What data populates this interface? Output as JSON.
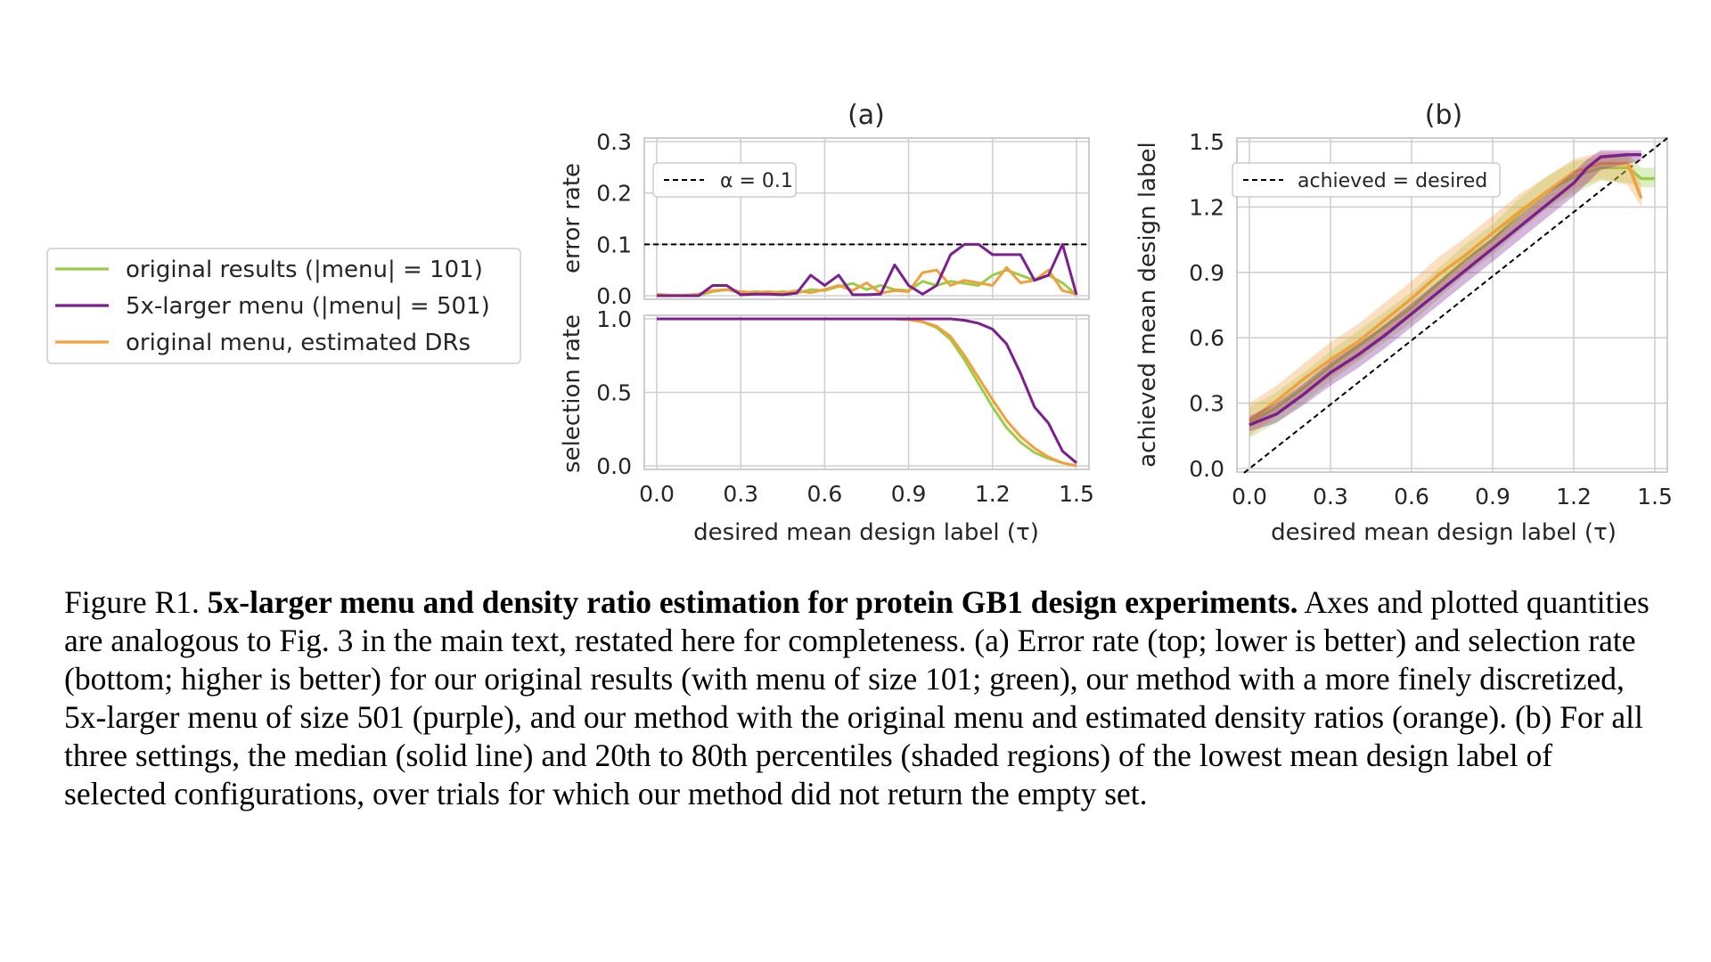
{
  "chart_data": [
    {
      "panel": "(a) top",
      "type": "line",
      "title": "(a)",
      "ylabel": "error rate",
      "xlim": [
        0.0,
        1.5
      ],
      "ylim": [
        0.0,
        0.3
      ],
      "yticks": [
        "0.0",
        "0.1",
        "0.2",
        "0.3"
      ],
      "grid": true,
      "legend_placement": "upper-left",
      "reference_line": {
        "label": "α = 0.1",
        "y": 0.1,
        "style": "dashed",
        "color": "#000000"
      },
      "series": [
        {
          "name": "original results (|menu| = 101)",
          "color": "#9ACD4C",
          "x": [
            0,
            0.05,
            0.1,
            0.15,
            0.2,
            0.25,
            0.3,
            0.35,
            0.4,
            0.45,
            0.5,
            0.55,
            0.6,
            0.65,
            0.7,
            0.75,
            0.8,
            0.85,
            0.9,
            0.95,
            1.0,
            1.05,
            1.1,
            1.15,
            1.2,
            1.25,
            1.3,
            1.35,
            1.4,
            1.45,
            1.5
          ],
          "y": [
            0.003,
            0.001,
            0.001,
            0.001,
            0.008,
            0.012,
            0.005,
            0.008,
            0.006,
            0.008,
            0.005,
            0.012,
            0.01,
            0.018,
            0.024,
            0.012,
            0.02,
            0.012,
            0.01,
            0.028,
            0.02,
            0.028,
            0.024,
            0.02,
            0.04,
            0.05,
            0.04,
            0.03,
            0.04,
            0.025,
            0.002
          ]
        },
        {
          "name": "5x-larger menu (|menu| = 501)",
          "color": "#7B1F8E",
          "x": [
            0,
            0.05,
            0.1,
            0.15,
            0.2,
            0.25,
            0.3,
            0.35,
            0.4,
            0.45,
            0.5,
            0.55,
            0.6,
            0.65,
            0.7,
            0.75,
            0.8,
            0.85,
            0.9,
            0.95,
            1.0,
            1.05,
            1.1,
            1.15,
            1.2,
            1.25,
            1.3,
            1.35,
            1.4,
            1.45,
            1.5
          ],
          "y": [
            0.0,
            0.0,
            0.0,
            0.0,
            0.02,
            0.02,
            0.002,
            0.003,
            0.003,
            0.002,
            0.005,
            0.04,
            0.02,
            0.04,
            0.002,
            0.002,
            0.003,
            0.06,
            0.02,
            0.003,
            0.02,
            0.08,
            0.1,
            0.1,
            0.08,
            0.08,
            0.08,
            0.03,
            0.04,
            0.1,
            0.002
          ]
        },
        {
          "name": "original menu, estimated DRs",
          "color": "#F0A03C",
          "x": [
            0,
            0.05,
            0.1,
            0.15,
            0.2,
            0.25,
            0.3,
            0.35,
            0.4,
            0.45,
            0.5,
            0.55,
            0.6,
            0.65,
            0.7,
            0.75,
            0.8,
            0.85,
            0.9,
            0.95,
            1.0,
            1.05,
            1.1,
            1.15,
            1.2,
            1.25,
            1.3,
            1.35,
            1.4,
            1.45,
            1.5
          ],
          "y": [
            0.002,
            0.001,
            0.001,
            0.003,
            0.01,
            0.012,
            0.008,
            0.006,
            0.008,
            0.005,
            0.01,
            0.006,
            0.012,
            0.02,
            0.01,
            0.025,
            0.005,
            0.01,
            0.008,
            0.045,
            0.05,
            0.02,
            0.03,
            0.025,
            0.02,
            0.055,
            0.025,
            0.03,
            0.05,
            0.01,
            0.003
          ]
        }
      ]
    },
    {
      "panel": "(a) bottom",
      "type": "line",
      "xlabel": "desired mean design label (τ)",
      "ylabel": "selection rate",
      "xlim": [
        0.0,
        1.5
      ],
      "ylim": [
        0.0,
        1.0
      ],
      "xticks": [
        "0.0",
        "0.3",
        "0.6",
        "0.9",
        "1.2",
        "1.5"
      ],
      "yticks": [
        "0.0",
        "0.5",
        "1.0"
      ],
      "grid": true,
      "series": [
        {
          "name": "original results (|menu| = 101)",
          "color": "#9ACD4C",
          "x": [
            0,
            0.85,
            0.9,
            0.95,
            1.0,
            1.05,
            1.1,
            1.15,
            1.2,
            1.25,
            1.3,
            1.35,
            1.4,
            1.45,
            1.5
          ],
          "y": [
            1.0,
            1.0,
            0.995,
            0.98,
            0.94,
            0.86,
            0.72,
            0.56,
            0.4,
            0.26,
            0.16,
            0.09,
            0.05,
            0.02,
            0.0
          ]
        },
        {
          "name": "5x-larger menu (|menu| = 501)",
          "color": "#7B1F8E",
          "x": [
            0,
            1.0,
            1.05,
            1.1,
            1.15,
            1.2,
            1.25,
            1.3,
            1.35,
            1.4,
            1.45,
            1.5
          ],
          "y": [
            1.0,
            1.0,
            1.0,
            0.99,
            0.97,
            0.93,
            0.83,
            0.63,
            0.4,
            0.29,
            0.1,
            0.02
          ]
        },
        {
          "name": "original menu, estimated DRs",
          "color": "#F0A03C",
          "x": [
            0,
            0.85,
            0.9,
            0.95,
            1.0,
            1.05,
            1.1,
            1.15,
            1.2,
            1.25,
            1.3,
            1.35,
            1.4,
            1.45,
            1.5
          ],
          "y": [
            1.0,
            1.0,
            0.995,
            0.98,
            0.95,
            0.88,
            0.75,
            0.6,
            0.45,
            0.31,
            0.2,
            0.12,
            0.06,
            0.02,
            0.0
          ]
        }
      ]
    },
    {
      "panel": "(b)",
      "type": "line",
      "title": "(b)",
      "xlabel": "desired mean design label (τ)",
      "ylabel": "achieved mean design label",
      "xlim": [
        0.0,
        1.5
      ],
      "ylim": [
        0.0,
        1.5
      ],
      "xticks": [
        "0.0",
        "0.3",
        "0.6",
        "0.9",
        "1.2",
        "1.5"
      ],
      "yticks": [
        "0.0",
        "0.3",
        "0.6",
        "0.9",
        "1.2",
        "1.5"
      ],
      "grid": true,
      "legend_placement": "upper-left",
      "reference_line": {
        "label": "achieved = desired",
        "style": "dashed",
        "color": "#000000"
      },
      "series": [
        {
          "name": "original results (|menu| = 101)",
          "color": "#9ACD4C",
          "x": [
            0,
            0.1,
            0.2,
            0.3,
            0.4,
            0.5,
            0.6,
            0.7,
            0.8,
            0.9,
            1.0,
            1.1,
            1.2,
            1.3,
            1.4,
            1.45,
            1.5
          ],
          "y": [
            0.21,
            0.28,
            0.37,
            0.47,
            0.56,
            0.65,
            0.74,
            0.85,
            0.96,
            1.05,
            1.17,
            1.27,
            1.34,
            1.38,
            1.38,
            1.33,
            1.33
          ],
          "p20": [
            0.14,
            0.21,
            0.3,
            0.4,
            0.49,
            0.58,
            0.67,
            0.78,
            0.89,
            0.98,
            1.09,
            1.19,
            1.26,
            1.32,
            1.31,
            1.29,
            1.29
          ],
          "p80": [
            0.28,
            0.35,
            0.44,
            0.54,
            0.63,
            0.72,
            0.81,
            0.92,
            1.03,
            1.12,
            1.24,
            1.34,
            1.41,
            1.43,
            1.45,
            1.38,
            1.38
          ]
        },
        {
          "name": "5x-larger menu (|menu| = 501)",
          "color": "#7B1F8E",
          "x": [
            0,
            0.1,
            0.2,
            0.3,
            0.4,
            0.5,
            0.6,
            0.7,
            0.8,
            0.9,
            1.0,
            1.1,
            1.2,
            1.25,
            1.3,
            1.4,
            1.45
          ],
          "y": [
            0.2,
            0.25,
            0.34,
            0.44,
            0.52,
            0.61,
            0.71,
            0.81,
            0.91,
            1.01,
            1.11,
            1.21,
            1.31,
            1.38,
            1.43,
            1.44,
            1.44
          ],
          "p20": [
            0.17,
            0.21,
            0.29,
            0.38,
            0.46,
            0.55,
            0.65,
            0.75,
            0.85,
            0.95,
            1.05,
            1.15,
            1.25,
            1.31,
            1.37,
            1.4,
            1.41
          ],
          "p80": [
            0.24,
            0.3,
            0.39,
            0.49,
            0.57,
            0.66,
            0.76,
            0.86,
            0.96,
            1.06,
            1.16,
            1.26,
            1.36,
            1.42,
            1.46,
            1.46,
            1.46
          ]
        },
        {
          "name": "original menu, estimated DRs",
          "color": "#F0A03C",
          "x": [
            0,
            0.1,
            0.2,
            0.3,
            0.4,
            0.5,
            0.6,
            0.7,
            0.8,
            0.9,
            1.0,
            1.1,
            1.2,
            1.3,
            1.4,
            1.45
          ],
          "y": [
            0.22,
            0.31,
            0.41,
            0.5,
            0.58,
            0.68,
            0.78,
            0.89,
            0.98,
            1.08,
            1.18,
            1.27,
            1.36,
            1.4,
            1.4,
            1.24
          ],
          "p20": [
            0.15,
            0.24,
            0.33,
            0.42,
            0.5,
            0.6,
            0.7,
            0.81,
            0.9,
            1.0,
            1.1,
            1.2,
            1.28,
            1.33,
            1.3,
            1.2
          ],
          "p80": [
            0.3,
            0.38,
            0.48,
            0.58,
            0.66,
            0.76,
            0.86,
            0.97,
            1.06,
            1.16,
            1.26,
            1.34,
            1.42,
            1.45,
            1.45,
            1.3
          ]
        }
      ]
    }
  ],
  "legend": {
    "items": [
      {
        "label": "original results (|menu| = 101)",
        "color": "#9ACD4C"
      },
      {
        "label": "5x-larger menu (|menu| = 501)",
        "color": "#7B1F8E"
      },
      {
        "label": "original menu, estimated DRs",
        "color": "#F0A03C"
      }
    ]
  },
  "caption": {
    "prefix": "Figure R1. ",
    "bold": "5x-larger menu and density ratio estimation for protein GB1 design experiments.",
    "text": " Axes and plotted quantities are analogous to Fig. 3 in the main text, restated here for completeness. (a) Error rate (top; lower is better) and selection rate (bottom; higher is better) for our original results (with menu of size 101; green), our method with a more finely discretized, 5x-larger menu of size 501 (purple), and our method with the original menu and estimated density ratios (orange). (b) For all three settings, the median (solid line) and 20th to 80th percentiles (shaded regions) of the lowest mean design label of selected configurations, over trials for which our method did not return the empty set."
  }
}
